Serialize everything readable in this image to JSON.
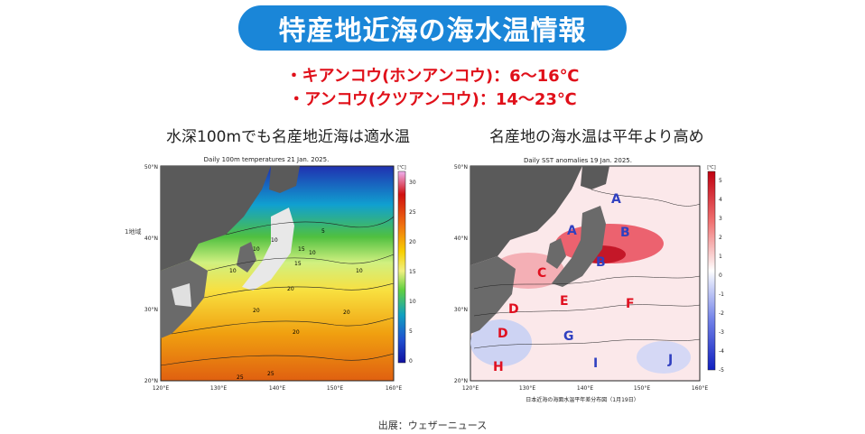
{
  "header": {
    "title": "特産地近海の海水温情報",
    "bullet_1": "・キアンコウ(ホンアンコウ)：6～16℃",
    "bullet_2": "・アンコウ(クツアンコウ)：14～23℃"
  },
  "left_panel": {
    "caption": "水深100mでも名産地近海は適水温",
    "map_title": "Daily 100m temperatures 21 Jan. 2025.",
    "colorbar_unit": "[℃]",
    "colorbar_ticks": [
      "30",
      "25",
      "20",
      "15",
      "10",
      "5",
      "0"
    ],
    "lat_labels": [
      "50°N",
      "40°N",
      "30°N",
      "20°N"
    ],
    "lon_labels": [
      "120°E",
      "130°E",
      "140°E",
      "150°E",
      "160°E"
    ],
    "contour_labels": [
      "5",
      "10",
      "10",
      "10",
      "15",
      "10",
      "15",
      "10",
      "20",
      "20",
      "20",
      "25",
      "25",
      "20"
    ],
    "stray_label": "1地域"
  },
  "right_panel": {
    "caption": "名産地の海水温は平年より高め",
    "map_title": "Daily SST anomalies 19 Jan. 2025.",
    "colorbar_unit": "[℃]",
    "colorbar_ticks": [
      "5",
      "4",
      "3",
      "2",
      "1",
      "0",
      "-1",
      "-2",
      "-3",
      "-4",
      "-5"
    ],
    "lat_labels": [
      "50°N",
      "40°N",
      "30°N",
      "20°N"
    ],
    "lon_labels": [
      "120°E",
      "130°E",
      "140°E",
      "150°E",
      "160°E"
    ],
    "region_letters": [
      "A",
      "A",
      "B",
      "B",
      "C",
      "D",
      "D",
      "E",
      "F",
      "G",
      "H",
      "I",
      "J"
    ],
    "footer": "日本近海の海面水温平年差分布図（1月19日）"
  },
  "footer": {
    "source": "出展：ウェザーニュース"
  }
}
